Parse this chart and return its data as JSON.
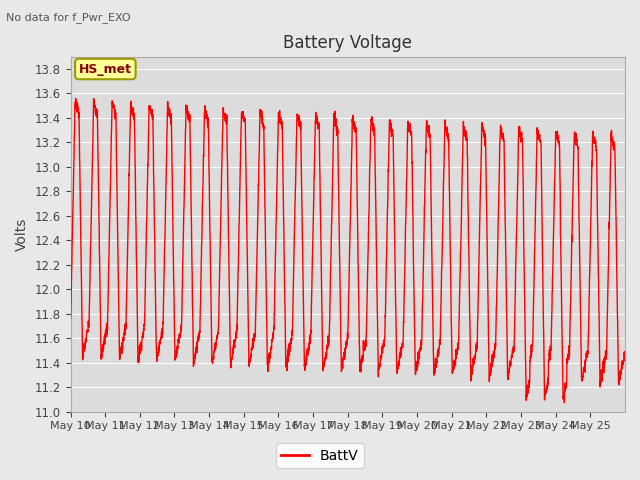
{
  "title": "Battery Voltage",
  "title_note": "No data for f_Pwr_EXO",
  "ylabel": "Volts",
  "legend_label": "BattV",
  "line_color": "red",
  "ylim": [
    11.0,
    13.9
  ],
  "yticks": [
    11.0,
    11.2,
    11.4,
    11.6,
    11.8,
    12.0,
    12.2,
    12.4,
    12.6,
    12.8,
    13.0,
    13.2,
    13.4,
    13.6,
    13.8
  ],
  "background_color": "#e8e8e8",
  "plot_bg_color": "#dcdcdc",
  "grid_color": "#ffffff",
  "annotation_text": "HS_met",
  "annotation_bg": "#ffff99",
  "annotation_border": "#999900",
  "xtick_days": [
    10,
    11,
    12,
    13,
    14,
    15,
    16,
    17,
    18,
    19,
    20,
    21,
    22,
    23,
    24,
    25
  ]
}
